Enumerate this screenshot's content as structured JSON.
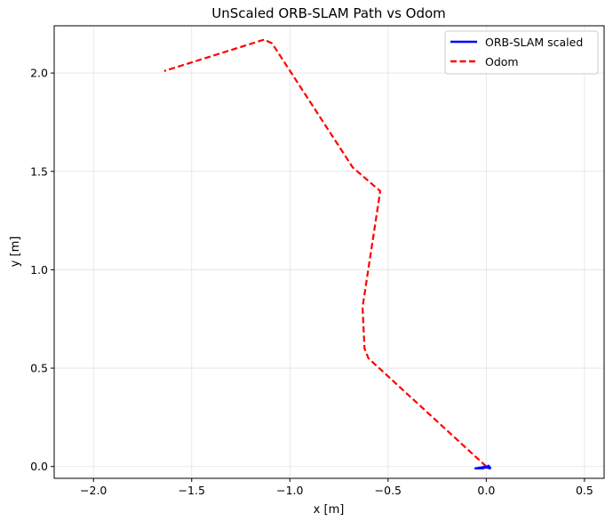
{
  "chart_data": {
    "type": "line",
    "title": "UnScaled ORB-SLAM Path vs Odom",
    "xlabel": "x [m]",
    "ylabel": "y [m]",
    "xlim": [
      -2.2,
      0.6
    ],
    "ylim": [
      -0.06,
      2.24
    ],
    "xticks": [
      -2.0,
      -1.5,
      -1.0,
      -0.5,
      0.0,
      0.5
    ],
    "xtick_labels": [
      "−2.0",
      "−1.5",
      "−1.0",
      "−0.5",
      "0.0",
      "0.5"
    ],
    "yticks": [
      0.0,
      0.5,
      1.0,
      1.5,
      2.0
    ],
    "ytick_labels": [
      "0.0",
      "0.5",
      "1.0",
      "1.5",
      "2.0"
    ],
    "grid": true,
    "legend_position": "top-right",
    "series": [
      {
        "name": "ORB-SLAM scaled",
        "color": "#0000ff",
        "style": "solid",
        "x": [
          -0.06,
          -0.03,
          0.0,
          0.02,
          0.01,
          0.02,
          0.0,
          -0.02,
          -0.06
        ],
        "y": [
          -0.01,
          -0.005,
          0.0,
          -0.005,
          0.005,
          -0.01,
          -0.005,
          -0.01,
          -0.01
        ]
      },
      {
        "name": "Odom",
        "color": "#ff0000",
        "style": "dashed",
        "x": [
          0.0,
          -0.6,
          -0.62,
          -0.63,
          -0.54,
          -0.68,
          -1.09,
          -1.13,
          -1.64
        ],
        "y": [
          0.0,
          0.55,
          0.6,
          0.81,
          1.4,
          1.52,
          2.15,
          2.17,
          2.01
        ]
      }
    ]
  }
}
